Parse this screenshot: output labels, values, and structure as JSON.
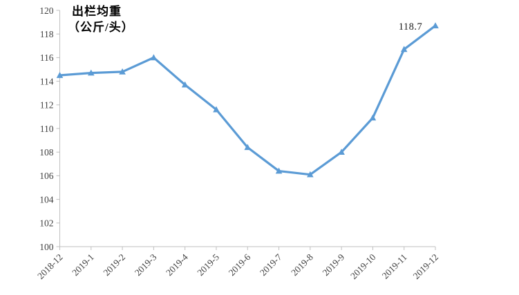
{
  "chart_data": {
    "type": "line",
    "title": "出栏均重",
    "subtitle": "（公斤/头）",
    "categories": [
      "2018-12",
      "2019-1",
      "2019-2",
      "2019-3",
      "2019-4",
      "2019-5",
      "2019-6",
      "2019-7",
      "2019-8",
      "2019-9",
      "2019-10",
      "2019-11",
      "2019-12"
    ],
    "series": [
      {
        "name": "出栏均重",
        "values": [
          114.5,
          114.7,
          114.8,
          116.0,
          113.7,
          111.6,
          108.4,
          106.4,
          106.1,
          108.0,
          110.9,
          116.7,
          118.7
        ]
      }
    ],
    "xlabel": "",
    "ylabel": "",
    "ylim": [
      100,
      120
    ],
    "y_ticks": [
      100,
      102,
      104,
      106,
      108,
      110,
      112,
      114,
      116,
      118,
      120
    ],
    "grid": false,
    "legend_position": "none",
    "marker": "triangle-up",
    "annotation": {
      "text": "118.7",
      "point_index": 12
    },
    "colors": {
      "line": "#5B9BD5",
      "axis": "#BFBFBF",
      "tick_label": "#404040",
      "title": "#000000",
      "annotation_text": "#1a1a1a",
      "background": "#ffffff"
    }
  }
}
